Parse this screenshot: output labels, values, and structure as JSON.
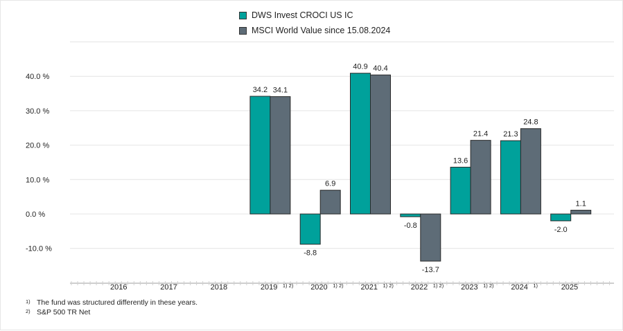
{
  "chart_data": {
    "type": "bar",
    "title": "",
    "xlabel": "",
    "ylabel": "",
    "ylim": [
      -20,
      60
    ],
    "y_ticks": [
      {
        "value": -10,
        "label": "-10.0 %"
      },
      {
        "value": 0,
        "label": "0.0 %"
      },
      {
        "value": 10,
        "label": "10.0 %"
      },
      {
        "value": 20,
        "label": "20.0 %"
      },
      {
        "value": 30,
        "label": "30.0 %"
      },
      {
        "value": 40,
        "label": "40.0 %"
      }
    ],
    "grid": true,
    "legend_position": "top-center",
    "categories": [
      "2016",
      "2017",
      "2018",
      "2019",
      "2020",
      "2021",
      "2022",
      "2023",
      "2024",
      "2025"
    ],
    "category_footnotes": [
      "",
      "",
      "",
      "1) 2)",
      "1) 2)",
      "1) 2)",
      "1) 2)",
      "1) 2)",
      "1)",
      ""
    ],
    "series": [
      {
        "name": "DWS Invest CROCI US IC",
        "color": "#00a19b",
        "values": [
          null,
          null,
          null,
          34.2,
          -8.8,
          40.9,
          -0.8,
          13.6,
          21.3,
          -2.0
        ],
        "labels": [
          "",
          "",
          "",
          "34.2",
          "-8.8",
          "40.9",
          "-0.8",
          "13.6",
          "21.3",
          "-2.0"
        ]
      },
      {
        "name": "MSCI World Value since 15.08.2024",
        "color": "#5e6c77",
        "values": [
          null,
          null,
          null,
          34.1,
          6.9,
          40.4,
          -13.7,
          21.4,
          24.8,
          1.1
        ],
        "labels": [
          "",
          "",
          "",
          "34.1",
          "6.9",
          "40.4",
          "-13.7",
          "21.4",
          "24.8",
          "1.1"
        ]
      }
    ]
  },
  "footnotes": [
    {
      "marker": "1)",
      "text": "The fund was structured differently in these years."
    },
    {
      "marker": "2)",
      "text": "S&P 500 TR Net"
    }
  ]
}
